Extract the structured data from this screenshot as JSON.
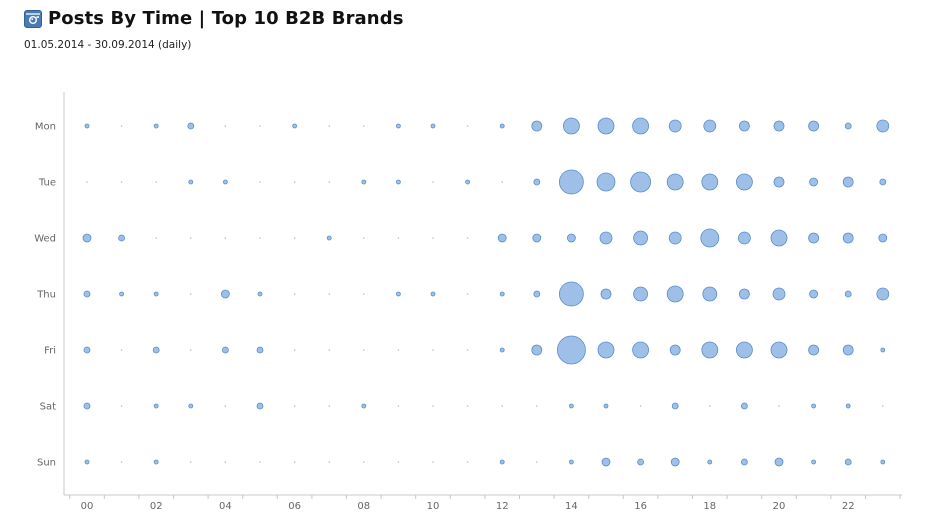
{
  "header": {
    "title": "Posts By Time | Top 10 B2B Brands",
    "subtitle": "01.05.2014 - 30.09.2014 (daily)",
    "icon": "camera-icon",
    "icon_color": "#4a7bb5"
  },
  "chart_data": {
    "type": "scatter",
    "title": "Posts By Time | Top 10 B2B Brands",
    "subtitle": "01.05.2014 - 30.09.2014 (daily)",
    "xlabel": "",
    "ylabel": "",
    "x": [
      0,
      1,
      2,
      3,
      4,
      5,
      6,
      7,
      8,
      9,
      10,
      11,
      12,
      13,
      14,
      15,
      16,
      17,
      18,
      19,
      20,
      21,
      22,
      23
    ],
    "x_tick_labels": [
      "00",
      "02",
      "04",
      "06",
      "08",
      "10",
      "12",
      "14",
      "16",
      "18",
      "20",
      "22"
    ],
    "x_tick_values": [
      0,
      2,
      4,
      6,
      8,
      10,
      12,
      14,
      16,
      18,
      20,
      22
    ],
    "categories": [
      "Mon",
      "Tue",
      "Wed",
      "Thu",
      "Fri",
      "Sat",
      "Sun"
    ],
    "bubble_color": "#9ec0e8",
    "bubble_stroke": "#5b8cc8",
    "grid": false,
    "legend": "none",
    "series": [
      {
        "values": [
          2,
          0,
          2,
          3,
          0,
          0,
          2,
          0,
          0,
          2,
          2,
          0,
          2,
          5,
          8,
          8,
          8,
          6,
          6,
          5,
          5,
          5,
          3,
          6
        ]
      },
      {
        "values": [
          0,
          0,
          0,
          2,
          2,
          0,
          0,
          0,
          2,
          2,
          0,
          2,
          0,
          3,
          12,
          9,
          10,
          8,
          8,
          8,
          5,
          4,
          5,
          3
        ]
      },
      {
        "values": [
          4,
          3,
          0,
          0,
          0,
          0,
          0,
          2,
          0,
          0,
          0,
          0,
          4,
          4,
          4,
          6,
          7,
          6,
          9,
          6,
          8,
          5,
          5,
          4
        ]
      },
      {
        "values": [
          3,
          2,
          2,
          0,
          4,
          2,
          0,
          0,
          0,
          2,
          2,
          0,
          2,
          3,
          12,
          5,
          7,
          8,
          7,
          5,
          6,
          4,
          3,
          6
        ]
      },
      {
        "values": [
          3,
          0,
          3,
          0,
          3,
          3,
          0,
          0,
          0,
          0,
          0,
          0,
          2,
          5,
          14,
          8,
          8,
          5,
          8,
          8,
          8,
          5,
          5,
          2
        ]
      },
      {
        "values": [
          3,
          0,
          2,
          2,
          0,
          3,
          0,
          0,
          2,
          0,
          0,
          0,
          0,
          0,
          2,
          2,
          0,
          3,
          0,
          3,
          0,
          2,
          2,
          0
        ]
      },
      {
        "values": [
          2,
          0,
          2,
          0,
          0,
          0,
          0,
          0,
          0,
          0,
          0,
          0,
          2,
          0,
          2,
          4,
          3,
          4,
          2,
          3,
          4,
          2,
          3,
          2
        ]
      }
    ]
  }
}
